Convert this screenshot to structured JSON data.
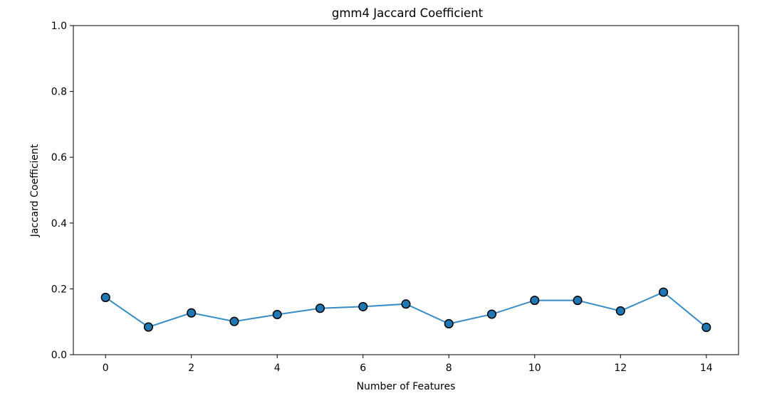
{
  "chart_data": {
    "type": "line",
    "title": "gmm4 Jaccard Coefficient",
    "xlabel": "Number of Features",
    "ylabel": "Jaccard Coefficient",
    "xlim": [
      -0.75,
      14.75
    ],
    "ylim": [
      0.0,
      1.0
    ],
    "xticks": [
      0,
      2,
      4,
      6,
      8,
      10,
      12,
      14
    ],
    "yticks": [
      0.0,
      0.2,
      0.4,
      0.6,
      0.8,
      1.0
    ],
    "xtick_labels": [
      "0",
      "2",
      "4",
      "6",
      "8",
      "10",
      "12",
      "14"
    ],
    "ytick_labels": [
      "0.0",
      "0.2",
      "0.4",
      "0.6",
      "0.8",
      "1.0"
    ],
    "grid": false,
    "series": [
      {
        "x": [
          0,
          1,
          2,
          3,
          4,
          5,
          6,
          7,
          8,
          9,
          10,
          11,
          12,
          13,
          14
        ],
        "values": [
          0.174,
          0.084,
          0.127,
          0.101,
          0.122,
          0.141,
          0.146,
          0.154,
          0.094,
          0.123,
          0.165,
          0.165,
          0.133,
          0.19,
          0.083
        ],
        "line_color": "#3a8cc4",
        "marker_fill": "#1f77b4",
        "marker_edge": "#000000"
      }
    ]
  }
}
